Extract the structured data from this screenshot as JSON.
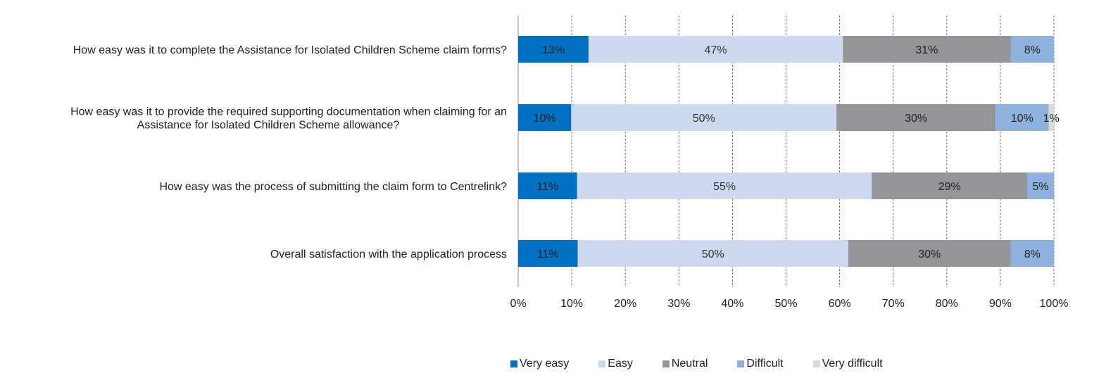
{
  "chart_data": {
    "type": "bar",
    "orientation": "horizontal",
    "stacked": true,
    "title": "",
    "xlabel": "",
    "ylabel": "",
    "xlim": [
      0,
      100
    ],
    "x_ticks": [
      "0%",
      "10%",
      "20%",
      "30%",
      "40%",
      "50%",
      "60%",
      "70%",
      "80%",
      "90%",
      "100%"
    ],
    "grid": "vertical-dashed",
    "legend_position": "bottom",
    "categories": [
      "How easy was it to complete the Assistance for Isolated Children Scheme claim forms?",
      "How easy was it to provide the required supporting documentation when claiming for an Assistance for Isolated Children Scheme allowance?",
      "How easy was the process of submitting the claim form to Centrelink?",
      "Overall satisfaction with the application process"
    ],
    "category_lines": [
      [
        "How easy was it to complete the Assistance for Isolated Children Scheme claim forms?"
      ],
      [
        "How easy was it to provide the required supporting documentation when claiming for an",
        "Assistance for Isolated Children Scheme allowance?"
      ],
      [
        "How easy was the process of submitting the claim form to Centrelink?"
      ],
      [
        "Overall satisfaction with the application process"
      ]
    ],
    "series": [
      {
        "name": "Very easy",
        "color": "#0070c0",
        "values": [
          13,
          10,
          11,
          11
        ]
      },
      {
        "name": "Easy",
        "color": "#cdd9ef",
        "values": [
          47,
          50,
          55,
          50
        ]
      },
      {
        "name": "Neutral",
        "color": "#939598",
        "values": [
          31,
          30,
          29,
          30
        ]
      },
      {
        "name": "Difficult",
        "color": "#8eb1de",
        "values": [
          8,
          10,
          5,
          8
        ]
      },
      {
        "name": "Very difficult",
        "color": "#d9d9d9",
        "values": [
          0,
          1,
          0,
          0
        ]
      }
    ],
    "data_labels": [
      [
        "13%",
        "47%",
        "31%",
        "8%",
        ""
      ],
      [
        "10%",
        "50%",
        "30%",
        "10%",
        "1%"
      ],
      [
        "11%",
        "55%",
        "29%",
        "5%",
        ""
      ],
      [
        "11%",
        "50%",
        "30%",
        "8%",
        ""
      ]
    ]
  }
}
